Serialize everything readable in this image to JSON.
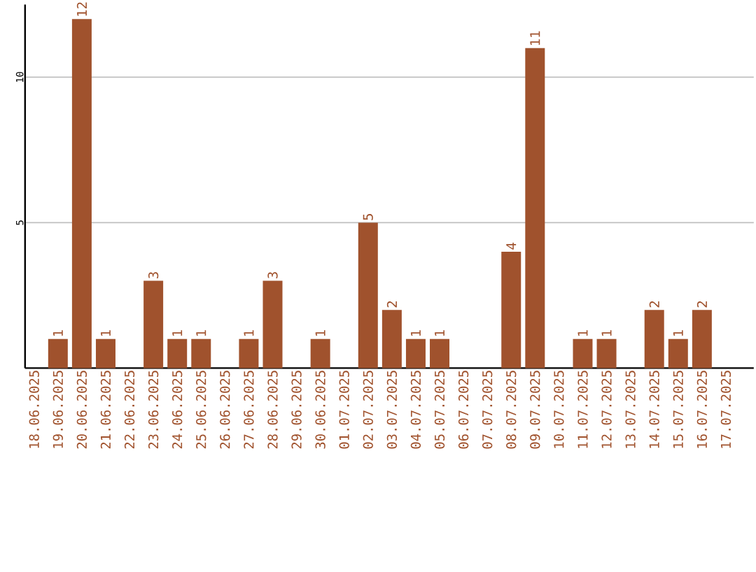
{
  "chart_data": {
    "type": "bar",
    "categories": [
      "18.06.2025",
      "19.06.2025",
      "20.06.2025",
      "21.06.2025",
      "22.06.2025",
      "23.06.2025",
      "24.06.2025",
      "25.06.2025",
      "26.06.2025",
      "27.06.2025",
      "28.06.2025",
      "29.06.2025",
      "30.06.2025",
      "01.07.2025",
      "02.07.2025",
      "03.07.2025",
      "04.07.2025",
      "05.07.2025",
      "06.07.2025",
      "07.07.2025",
      "08.07.2025",
      "09.07.2025",
      "10.07.2025",
      "11.07.2025",
      "12.07.2025",
      "13.07.2025",
      "14.07.2025",
      "15.07.2025",
      "16.07.2025",
      "17.07.2025"
    ],
    "values": [
      0,
      1,
      12,
      1,
      0,
      3,
      1,
      1,
      0,
      1,
      3,
      0,
      1,
      0,
      5,
      2,
      1,
      1,
      0,
      0,
      4,
      11,
      0,
      1,
      1,
      0,
      2,
      1,
      2,
      0
    ],
    "value_labels": [
      null,
      "1",
      "12",
      "1",
      null,
      "3",
      "1",
      "1",
      null,
      "1",
      "3",
      null,
      "1",
      null,
      "5",
      "2",
      "1",
      "1",
      null,
      null,
      "4",
      "11",
      null,
      "1",
      "1",
      null,
      "2",
      "1",
      "2",
      null
    ],
    "color": "#a0522d",
    "ylim": [
      0,
      12.5
    ],
    "yticks": [
      5,
      10
    ],
    "grid": "y"
  }
}
